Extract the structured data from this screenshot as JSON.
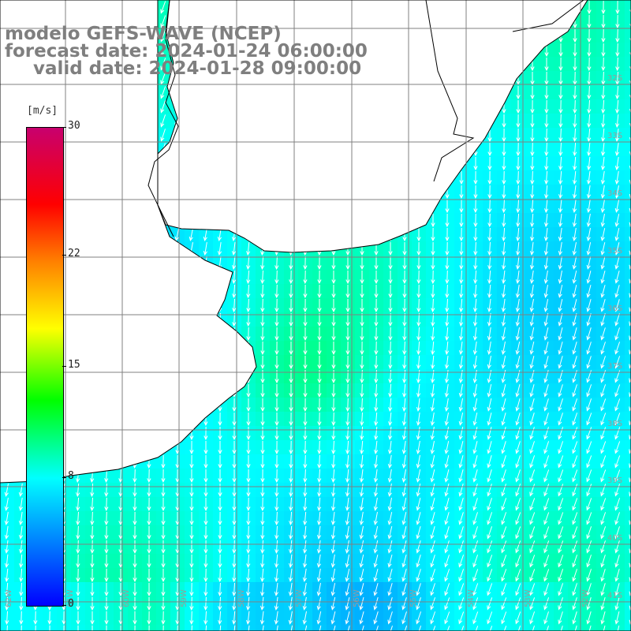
{
  "title": {
    "line1": "modelo GEFS-WAVE (NCEP)",
    "line2": "forecast date: 2024-01-24 06:00:00",
    "line3": "valid date: 2024-01-28 09:00:00"
  },
  "colorbar": {
    "units": "[m/s]",
    "min": 0,
    "max": 30,
    "ticks": [
      "30",
      "22",
      "15",
      "8",
      "0"
    ],
    "tick_values": [
      30,
      22,
      15,
      8,
      0
    ],
    "colormap": [
      "#0000ff",
      "#0090ff",
      "#00ffff",
      "#00ff00",
      "#ffff00",
      "#ff8000",
      "#ff0000",
      "#c8006e"
    ]
  },
  "map": {
    "lat_labels": [
      "32S",
      "33S",
      "34S",
      "35S",
      "36S",
      "37S",
      "38S",
      "39S",
      "40S",
      "41S"
    ],
    "lon_labels": [
      "62W",
      "61W",
      "60W",
      "59W",
      "58W",
      "57W",
      "56W",
      "55W",
      "54W",
      "53W",
      "52W",
      "51W"
    ],
    "lat_range": [
      -41.5,
      -30.5
    ],
    "lon_range": [
      -62.5,
      -51.5
    ],
    "dominant_wind_direction": "from NNE (arrows pointing SSW)",
    "typical_speed_ms": 8,
    "land_color": "#ffffff",
    "grid_color": "#808080"
  }
}
